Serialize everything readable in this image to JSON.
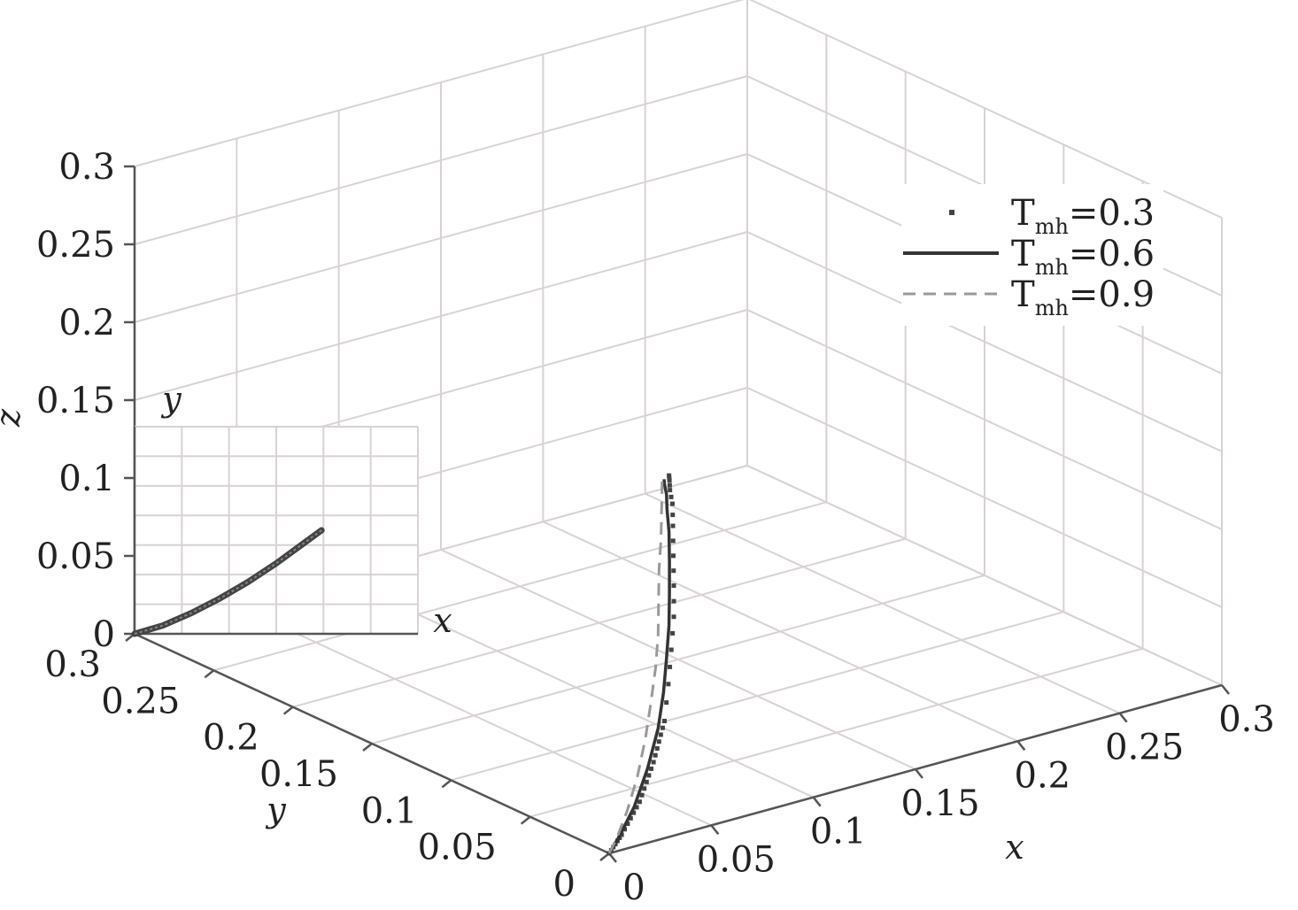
{
  "chart_data": {
    "type": "line",
    "projection": "3d",
    "xlabel": "x",
    "ylabel": "y",
    "zlabel": "z",
    "xlim": [
      0,
      0.3
    ],
    "ylim": [
      0,
      0.3
    ],
    "zlim": [
      0,
      0.3
    ],
    "x_ticks": [
      "0",
      "0.05",
      "0.1",
      "0.15",
      "0.2",
      "0.25",
      "0.3"
    ],
    "y_ticks": [
      "0",
      "0.05",
      "0.1",
      "0.15",
      "0.2",
      "0.25",
      "0.3"
    ],
    "z_ticks": [
      "0",
      "0.05",
      "0.1",
      "0.15",
      "0.2",
      "0.25",
      "0.3"
    ],
    "grid": true,
    "legend_position": "top-right",
    "series": [
      {
        "name": "T_mh=0.3",
        "label_main": "T",
        "label_sub": "mh",
        "label_value": "=0.3",
        "style": "dotted",
        "color": "#444444",
        "points": [
          [
            0,
            0,
            0
          ],
          [
            0.01,
            0.005,
            0.006
          ],
          [
            0.025,
            0.013,
            0.018
          ],
          [
            0.038,
            0.021,
            0.035
          ],
          [
            0.048,
            0.027,
            0.055
          ],
          [
            0.053,
            0.031,
            0.075
          ],
          [
            0.056,
            0.033,
            0.095
          ],
          [
            0.058,
            0.034,
            0.115
          ],
          [
            0.058,
            0.034,
            0.135
          ],
          [
            0.057,
            0.033,
            0.155
          ],
          [
            0.056,
            0.032,
            0.175
          ],
          [
            0.055,
            0.031,
            0.19
          ],
          [
            0.053,
            0.03,
            0.2
          ],
          [
            0.052,
            0.029,
            0.207
          ],
          [
            0.051,
            0.028,
            0.211
          ]
        ]
      },
      {
        "name": "T_mh=0.6",
        "label_main": "T",
        "label_sub": "mh",
        "label_value": "=0.6",
        "style": "solid",
        "color": "#333333",
        "points": [
          [
            0,
            0,
            0
          ],
          [
            0.008,
            0.004,
            0.006
          ],
          [
            0.02,
            0.01,
            0.018
          ],
          [
            0.032,
            0.017,
            0.035
          ],
          [
            0.041,
            0.022,
            0.055
          ],
          [
            0.046,
            0.025,
            0.075
          ],
          [
            0.049,
            0.027,
            0.095
          ],
          [
            0.051,
            0.028,
            0.115
          ],
          [
            0.052,
            0.029,
            0.135
          ],
          [
            0.052,
            0.029,
            0.155
          ],
          [
            0.051,
            0.028,
            0.175
          ],
          [
            0.05,
            0.028,
            0.19
          ],
          [
            0.049,
            0.027,
            0.2
          ],
          [
            0.048,
            0.027,
            0.207
          ],
          [
            0.047,
            0.026,
            0.211
          ]
        ]
      },
      {
        "name": "T_mh=0.9",
        "label_main": "T",
        "label_sub": "mh",
        "label_value": "=0.9",
        "style": "dashed",
        "color": "#999999",
        "points": [
          [
            0,
            0,
            0
          ],
          [
            0.006,
            0.003,
            0.006
          ],
          [
            0.015,
            0.008,
            0.018
          ],
          [
            0.024,
            0.013,
            0.035
          ],
          [
            0.031,
            0.017,
            0.055
          ],
          [
            0.036,
            0.02,
            0.075
          ],
          [
            0.039,
            0.021,
            0.095
          ],
          [
            0.041,
            0.022,
            0.115
          ],
          [
            0.042,
            0.023,
            0.135
          ],
          [
            0.043,
            0.024,
            0.155
          ],
          [
            0.044,
            0.024,
            0.175
          ],
          [
            0.045,
            0.025,
            0.19
          ],
          [
            0.046,
            0.026,
            0.2
          ],
          [
            0.046,
            0.026,
            0.207
          ],
          [
            0.046,
            0.026,
            0.211
          ]
        ]
      }
    ],
    "inset": {
      "xlabel": "x",
      "ylabel": "y",
      "grid": true,
      "position": "left-middle",
      "points": [
        [
          0,
          0
        ],
        [
          0.1,
          0.04
        ],
        [
          0.2,
          0.1
        ],
        [
          0.3,
          0.17
        ],
        [
          0.4,
          0.25
        ],
        [
          0.5,
          0.34
        ],
        [
          0.6,
          0.44
        ],
        [
          0.66,
          0.5
        ]
      ]
    }
  }
}
